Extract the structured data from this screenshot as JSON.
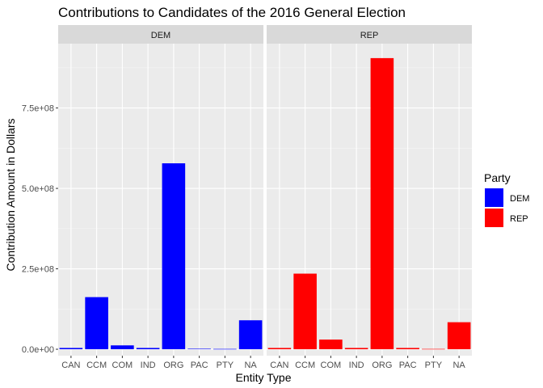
{
  "chart_data": {
    "type": "bar",
    "title": "Contributions to Candidates of the 2016 General Election",
    "xlabel": "Entity Type",
    "ylabel": "Contribution Amount in Dollars",
    "categories": [
      "CAN",
      "CCM",
      "COM",
      "IND",
      "ORG",
      "PAC",
      "PTY",
      "NA"
    ],
    "ylim": [
      -20000000,
      950000000
    ],
    "yticks": [
      0,
      250000000,
      500000000,
      750000000
    ],
    "ytick_labels": [
      "0.0e+00",
      "2.5e+08",
      "5.0e+08",
      "7.5e+08"
    ],
    "grid": true,
    "facets": [
      {
        "label": "DEM",
        "color": "#0000FF",
        "values": [
          4000000,
          162000000,
          12000000,
          4000000,
          578000000,
          1500000,
          1000000,
          90000000
        ]
      },
      {
        "label": "REP",
        "color": "#FF0000",
        "values": [
          4000000,
          235000000,
          30000000,
          4000000,
          905000000,
          4000000,
          1000000,
          84000000
        ]
      }
    ],
    "legend": {
      "title": "Party",
      "position": "right",
      "entries": [
        {
          "label": "DEM",
          "color": "#0000FF"
        },
        {
          "label": "REP",
          "color": "#FF0000"
        }
      ]
    }
  }
}
